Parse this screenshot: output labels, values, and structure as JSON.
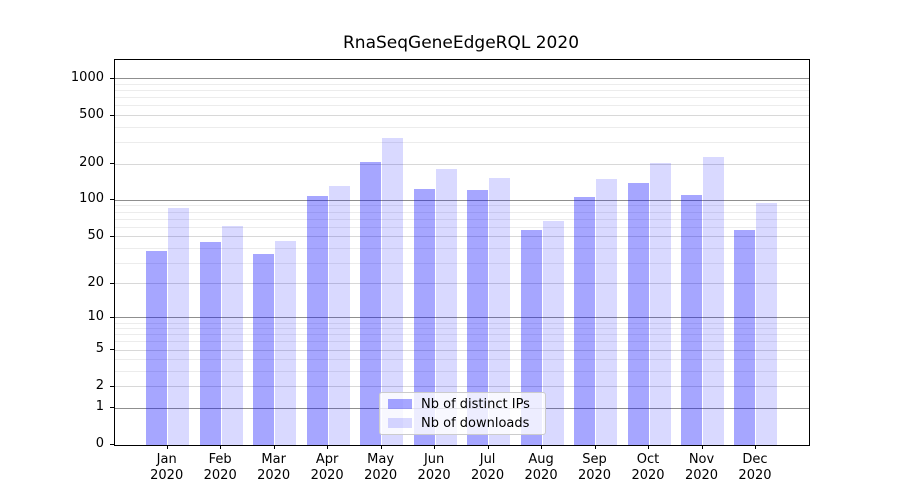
{
  "chart_data": {
    "type": "bar",
    "title": "RnaSeqGeneEdgeRQL 2020",
    "categories": [
      "Jan",
      "Feb",
      "Mar",
      "Apr",
      "May",
      "Jun",
      "Jul",
      "Aug",
      "Sep",
      "Oct",
      "Nov",
      "Dec"
    ],
    "xtick_year": "2020",
    "series": [
      {
        "name": "Nb of distinct IPs",
        "color": "rgba(0,0,255,0.35)",
        "values": [
          38,
          45,
          36,
          109,
          209,
          125,
          121,
          57,
          107,
          139,
          112,
          57
        ]
      },
      {
        "name": "Nb of downloads",
        "color": "rgba(0,0,255,0.15)",
        "values": [
          86,
          61,
          46,
          132,
          329,
          183,
          153,
          68,
          150,
          205,
          228,
          96
        ]
      }
    ],
    "yscale": "log10(value+1)",
    "ylim": [
      0,
      1430
    ],
    "yticks": [
      0,
      1,
      2,
      5,
      10,
      20,
      50,
      100,
      200,
      500,
      1000
    ],
    "minor_gridlines": [
      3,
      4,
      6,
      7,
      8,
      9,
      30,
      40,
      60,
      70,
      80,
      90,
      300,
      400,
      600,
      700,
      800,
      900
    ],
    "decade_gridlines": [
      1,
      10,
      100,
      1000
    ],
    "grid": true,
    "legend_position": "bottom-center-inside"
  },
  "colors": {
    "bar_distinct_ips": "rgba(0,0,255,0.35)",
    "bar_downloads": "rgba(0,0,255,0.15)",
    "grid_decade": "#8f8f8f",
    "grid_labeled": "#d8d8d8",
    "grid_minor": "#ececec",
    "spine": "#000000",
    "text": "#000000",
    "legend_border": "#cccccc"
  }
}
